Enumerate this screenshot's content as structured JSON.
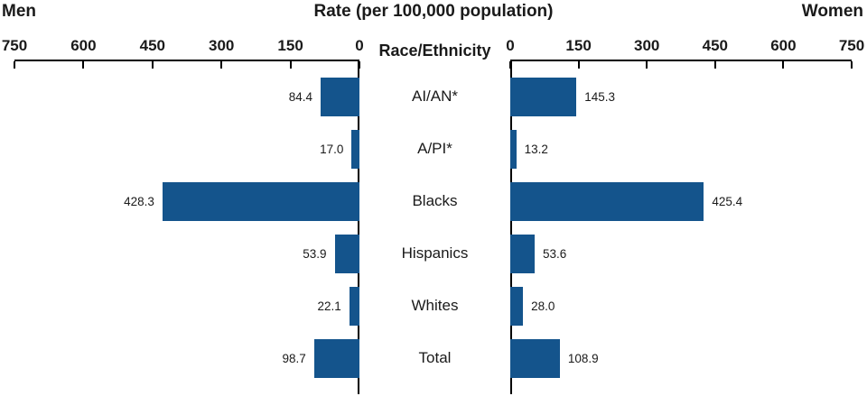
{
  "header": {
    "men_label": "Men",
    "title": "Rate (per 100,000 population)",
    "women_label": "Women"
  },
  "axis_label": "Race/Ethnicity",
  "chart_data": {
    "type": "bar",
    "layout": "bilateral-horizontal",
    "title": "Rate (per 100,000 population)",
    "categories": [
      "AI/AN*",
      "A/PI*",
      "Blacks",
      "Hispanics",
      "Whites",
      "Total"
    ],
    "series": [
      {
        "name": "Men",
        "side": "left",
        "values": [
          84.4,
          17.0,
          428.3,
          53.9,
          22.1,
          98.7
        ]
      },
      {
        "name": "Women",
        "side": "right",
        "values": [
          145.3,
          13.2,
          425.4,
          53.6,
          28.0,
          108.9
        ]
      }
    ],
    "axis": {
      "min": 0,
      "max": 750,
      "ticks": [
        0,
        150,
        300,
        450,
        600,
        750
      ],
      "label": "Race/Ethnicity"
    },
    "bar_color": "#14548c",
    "value_format": "1-decimal",
    "grid": false,
    "legend": "none"
  }
}
